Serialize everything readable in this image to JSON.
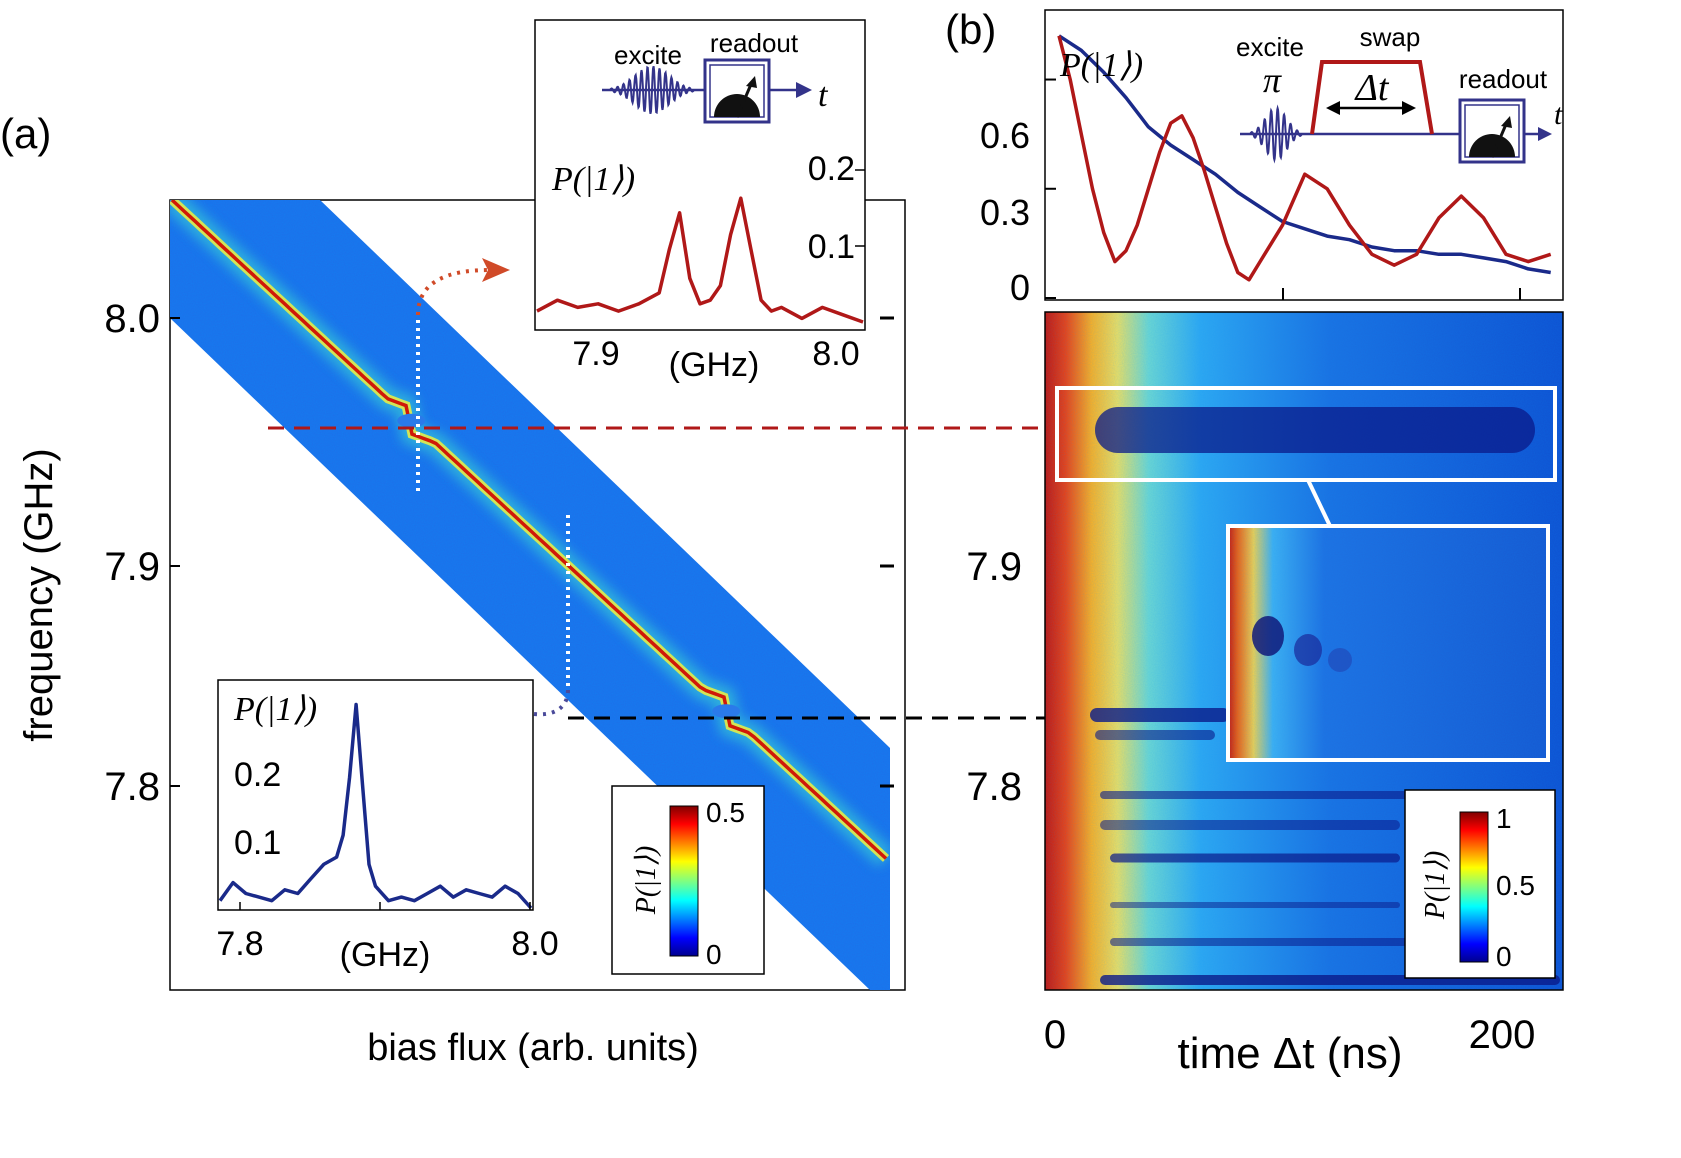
{
  "panel_a": {
    "label": "(a)",
    "xlabel": "bias flux (arb. units)",
    "ylabel": "frequency (GHz)",
    "yticks": [
      "8.0",
      "7.9",
      "7.8"
    ],
    "colorbar": {
      "label": "P(|1⟩)",
      "max": "0.5",
      "min": "0"
    },
    "inset_top": {
      "ylabel": "P(|1⟩)",
      "yticks": [
        "0.2",
        "0.1"
      ],
      "xticks": [
        "7.9",
        "8.0"
      ],
      "xlabel": "(GHz)",
      "schematic": {
        "excite": "excite",
        "readout": "readout",
        "t": "t"
      }
    },
    "inset_bottom": {
      "ylabel": "P(|1⟩)",
      "yticks": [
        "0.2",
        "0.1"
      ],
      "xticks": [
        "7.8",
        "8.0"
      ],
      "xlabel": "(GHz)"
    }
  },
  "panel_b": {
    "label": "(b)",
    "xlabel": "time Δt (ns)",
    "xticks": [
      "0",
      "200"
    ],
    "yticks": [
      "7.9",
      "7.8"
    ],
    "colorbar": {
      "label": "P(|1⟩)",
      "max": "1",
      "mid": "0.5",
      "min": "0"
    },
    "top_plot": {
      "ylabel": "P(|1⟩)",
      "yticks": [
        "0.6",
        "0.3",
        "0"
      ],
      "schematic": {
        "excite": "excite",
        "pi": "π",
        "swap": "swap",
        "dt": "Δt",
        "readout": "readout",
        "t": "t"
      }
    }
  },
  "colors": {
    "red_trace": "#b01818",
    "blue_trace": "#1a2a8a",
    "red_dash": "#b01818",
    "black_dash": "#000000"
  },
  "chart_data": [
    {
      "type": "heatmap",
      "name": "spectroscopy",
      "xlabel": "bias flux (arb. units)",
      "ylabel": "frequency (GHz)",
      "ylim": [
        7.71,
        8.05
      ],
      "ridge_freqs_at_edges": [
        8.05,
        7.765
      ],
      "avoided_crossings_GHz": [
        7.955,
        7.83
      ],
      "colorbar": [
        0,
        0.5
      ]
    },
    {
      "type": "line",
      "name": "top inset spectrum",
      "xlabel": "(GHz)",
      "xlim": [
        7.86,
        8.02
      ],
      "ylim": [
        0,
        0.25
      ],
      "x": [
        7.86,
        7.87,
        7.88,
        7.89,
        7.9,
        7.91,
        7.92,
        7.925,
        7.93,
        7.935,
        7.94,
        7.945,
        7.95,
        7.955,
        7.96,
        7.965,
        7.97,
        7.975,
        7.98,
        7.99,
        8.0,
        8.01,
        8.02
      ],
      "y": [
        0.015,
        0.03,
        0.02,
        0.025,
        0.015,
        0.025,
        0.04,
        0.1,
        0.15,
        0.06,
        0.025,
        0.03,
        0.05,
        0.12,
        0.17,
        0.1,
        0.03,
        0.015,
        0.02,
        0.005,
        0.02,
        0.01,
        0.0
      ]
    },
    {
      "type": "line",
      "name": "bottom inset spectrum",
      "xlabel": "(GHz)",
      "xlim": [
        7.77,
        8.01
      ],
      "ylim": [
        0,
        0.3
      ],
      "x": [
        7.77,
        7.78,
        7.79,
        7.8,
        7.81,
        7.82,
        7.83,
        7.84,
        7.85,
        7.86,
        7.865,
        7.87,
        7.875,
        7.88,
        7.885,
        7.89,
        7.9,
        7.91,
        7.92,
        7.93,
        7.94,
        7.95,
        7.96,
        7.97,
        7.98,
        7.99,
        8.0,
        8.01
      ],
      "y": [
        0.01,
        0.035,
        0.02,
        0.015,
        0.01,
        0.025,
        0.02,
        0.04,
        0.06,
        0.07,
        0.1,
        0.18,
        0.28,
        0.17,
        0.06,
        0.03,
        0.01,
        0.015,
        0.01,
        0.02,
        0.03,
        0.015,
        0.025,
        0.02,
        0.015,
        0.03,
        0.02,
        0.0
      ]
    },
    {
      "type": "line",
      "name": "swap P(|1>) vs time",
      "ylim": [
        0,
        0.78
      ],
      "series": [
        {
          "color": "#1a2a8a",
          "x": [
            0,
            10,
            20,
            30,
            40,
            50,
            60,
            70,
            80,
            90,
            100,
            110,
            120,
            130,
            140,
            150,
            160,
            170,
            180,
            190,
            200,
            210,
            220
          ],
          "y": [
            0.72,
            0.68,
            0.62,
            0.55,
            0.47,
            0.42,
            0.38,
            0.34,
            0.29,
            0.25,
            0.21,
            0.19,
            0.17,
            0.16,
            0.14,
            0.13,
            0.13,
            0.12,
            0.12,
            0.11,
            0.1,
            0.08,
            0.07
          ]
        },
        {
          "color": "#b01818",
          "x": [
            0,
            5,
            10,
            15,
            20,
            25,
            30,
            35,
            40,
            45,
            50,
            55,
            60,
            65,
            70,
            75,
            80,
            85,
            90,
            100,
            110,
            120,
            130,
            140,
            150,
            160,
            170,
            180,
            190,
            200,
            210,
            220
          ],
          "y": [
            0.72,
            0.6,
            0.45,
            0.3,
            0.18,
            0.1,
            0.13,
            0.2,
            0.3,
            0.4,
            0.48,
            0.5,
            0.44,
            0.35,
            0.25,
            0.15,
            0.07,
            0.05,
            0.1,
            0.2,
            0.34,
            0.3,
            0.2,
            0.12,
            0.09,
            0.12,
            0.22,
            0.28,
            0.22,
            0.12,
            0.1,
            0.12
          ]
        }
      ]
    },
    {
      "type": "heatmap",
      "name": "swap map",
      "xlabel": "time Δt (ns)",
      "xlim": [
        0,
        225
      ],
      "colorbar": [
        0,
        1
      ]
    }
  ]
}
